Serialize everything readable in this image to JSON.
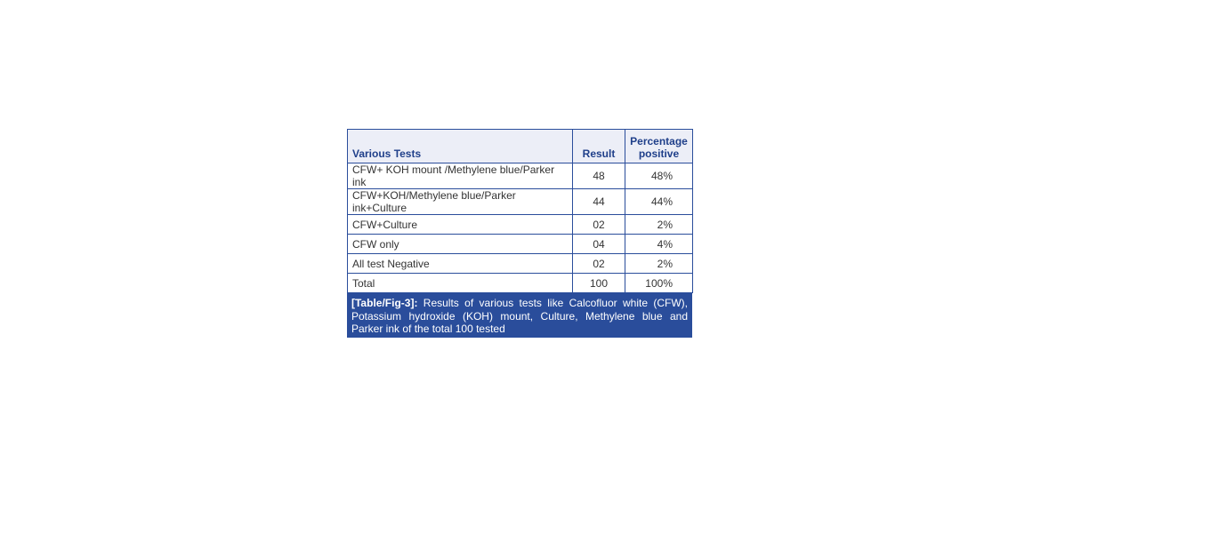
{
  "table": {
    "header": [
      "Various Tests",
      "Result",
      "Percentage positive"
    ],
    "rows": [
      [
        "CFW+ KOH mount /Methylene blue/Parker ink",
        "48",
        "48%"
      ],
      [
        "CFW+KOH/Methylene blue/Parker ink+Culture",
        "44",
        "44%"
      ],
      [
        "CFW+Culture",
        "02",
        "2%"
      ],
      [
        "CFW only",
        "04",
        "4%"
      ],
      [
        "All test Negative",
        "02",
        "2%"
      ],
      [
        "Total",
        "100",
        "100%"
      ]
    ],
    "caption": {
      "label": "[Table/Fig-3]:",
      "text": "Results of various tests like Calcofluor white (CFW), Potassium hydroxide (KOH) mount, Culture, Methylene blue and Parker ink of the total 100 tested"
    }
  }
}
